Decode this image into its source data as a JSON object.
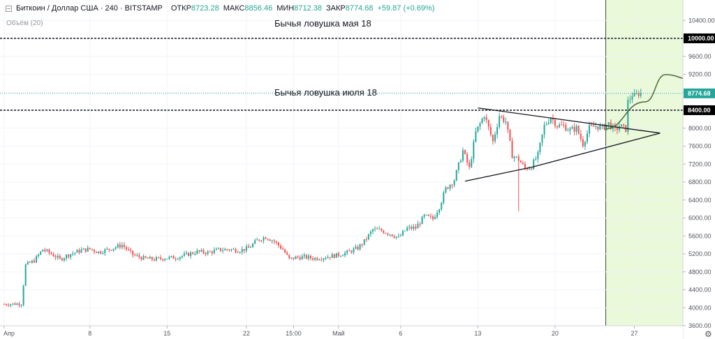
{
  "header": {
    "symbol": "Биткоин / Доллар США · 240 · BITSTAMP",
    "open_label": "ОТКР",
    "open_value": "8723.28",
    "high_label": "МАКС",
    "high_value": "8856.46",
    "low_label": "МИН",
    "low_value": "8712.38",
    "close_label": "ЗАКР",
    "close_value": "8774.68",
    "change": "+59.87 (+0.69%)"
  },
  "volume_label": "Объём (20)",
  "chart_data": {
    "type": "candlestick",
    "y_axis": {
      "min": 3500,
      "max": 10700,
      "ticks": [
        3600,
        4000,
        4400,
        4800,
        5200,
        5600,
        6000,
        6400,
        6800,
        7200,
        7600,
        8000,
        8400,
        8800,
        9200,
        9600,
        10000,
        10400
      ],
      "tick_labels": [
        "3600.00",
        "4000.00",
        "4400.00",
        "4800.00",
        "5200.00",
        "5600.00",
        "6000.00",
        "6400.00",
        "6800.00",
        "7200.00",
        "7600.00",
        "8000.00",
        "8400.00",
        "8800.00",
        "9200.00",
        "9600.00",
        "10000.00",
        "10400.00"
      ],
      "highlighted_labels": [
        {
          "value": 10000,
          "label": "10000.00",
          "color": "#000000"
        },
        {
          "value": 8400,
          "label": "8400.00",
          "color": "#000000"
        },
        {
          "value": 8774.68,
          "label": "8774.68",
          "color": "#26a69a"
        }
      ]
    },
    "x_axis": {
      "ticks": [
        {
          "label": "Апр",
          "bar": 0
        },
        {
          "label": "8",
          "bar": 40
        },
        {
          "label": "15",
          "bar": 76
        },
        {
          "label": "22",
          "bar": 113
        },
        {
          "label": "15:00",
          "bar": 135
        },
        {
          "label": "Май",
          "bar": 156
        },
        {
          "label": "6",
          "bar": 185
        },
        {
          "label": "13",
          "bar": 221
        },
        {
          "label": "20",
          "bar": 257
        },
        {
          "label": "27",
          "bar": 294
        }
      ]
    },
    "bar_count": 298,
    "anchors": [
      [
        0,
        4080
      ],
      [
        8,
        4090
      ],
      [
        10,
        4950
      ],
      [
        14,
        5050
      ],
      [
        18,
        5300
      ],
      [
        22,
        5200
      ],
      [
        26,
        5080
      ],
      [
        30,
        5180
      ],
      [
        36,
        5280
      ],
      [
        40,
        5310
      ],
      [
        44,
        5240
      ],
      [
        50,
        5320
      ],
      [
        55,
        5400
      ],
      [
        60,
        5180
      ],
      [
        65,
        5100
      ],
      [
        70,
        5080
      ],
      [
        76,
        5110
      ],
      [
        80,
        5120
      ],
      [
        85,
        5180
      ],
      [
        90,
        5250
      ],
      [
        95,
        5230
      ],
      [
        100,
        5290
      ],
      [
        105,
        5300
      ],
      [
        110,
        5280
      ],
      [
        114,
        5330
      ],
      [
        118,
        5500
      ],
      [
        122,
        5580
      ],
      [
        126,
        5480
      ],
      [
        130,
        5300
      ],
      [
        133,
        5080
      ],
      [
        136,
        5120
      ],
      [
        140,
        5130
      ],
      [
        145,
        5100
      ],
      [
        150,
        5130
      ],
      [
        155,
        5170
      ],
      [
        160,
        5230
      ],
      [
        165,
        5330
      ],
      [
        168,
        5480
      ],
      [
        172,
        5740
      ],
      [
        176,
        5720
      ],
      [
        180,
        5650
      ],
      [
        184,
        5560
      ],
      [
        188,
        5770
      ],
      [
        192,
        5780
      ],
      [
        196,
        6040
      ],
      [
        200,
        5980
      ],
      [
        203,
        6250
      ],
      [
        206,
        6650
      ],
      [
        210,
        6850
      ],
      [
        214,
        7500
      ],
      [
        217,
        7100
      ],
      [
        220,
        7900
      ],
      [
        224,
        8300
      ],
      [
        228,
        7700
      ],
      [
        231,
        8280
      ],
      [
        234,
        8150
      ],
      [
        237,
        7400
      ],
      [
        240,
        7300
      ],
      [
        243,
        7100
      ],
      [
        246,
        7150
      ],
      [
        249,
        7400
      ],
      [
        252,
        8050
      ],
      [
        255,
        8250
      ],
      [
        258,
        8060
      ],
      [
        261,
        8050
      ],
      [
        264,
        7950
      ],
      [
        267,
        8000
      ],
      [
        270,
        7650
      ],
      [
        273,
        8000
      ],
      [
        276,
        8050
      ],
      [
        279,
        8010
      ],
      [
        282,
        8100
      ],
      [
        285,
        7950
      ],
      [
        287,
        8050
      ],
      [
        290,
        7980
      ],
      [
        291,
        8580
      ],
      [
        293,
        8750
      ],
      [
        294,
        8700
      ],
      [
        296,
        8780
      ],
      [
        297,
        8775
      ]
    ],
    "spikes": [
      {
        "bar": 240,
        "low": 6150
      }
    ],
    "projection_start_bar": 280,
    "projection_curve": [
      [
        0,
        0
      ],
      [
        0.08,
        0.3
      ],
      [
        0.12,
        0.6
      ],
      [
        0.17,
        0.55
      ],
      [
        0.24,
        0.75
      ],
      [
        0.3,
        0.95
      ],
      [
        0.34,
        1.0
      ],
      [
        0.4,
        0.9
      ],
      [
        0.5,
        0.55
      ],
      [
        0.6,
        0.1
      ],
      [
        0.7,
        -0.35
      ],
      [
        0.78,
        -0.6
      ]
    ],
    "annotations": [
      {
        "text": "Бычья ловушка мая 18",
        "level": 10000
      },
      {
        "text": "Бычья ловушка июля 18",
        "level": 8400
      }
    ],
    "horizontal_levels": [
      10000,
      8400
    ],
    "current_price": 8774.68,
    "triangle": [
      [
        215,
        6820
      ],
      [
        246,
        7130
      ],
      [
        306,
        7890
      ],
      [
        221,
        8450
      ]
    ],
    "colors": {
      "up": "#26a69a",
      "down": "#ef5350",
      "highlight": "#e9f9d9",
      "projection": "#4b6a3c",
      "axis_text": "#50535e"
    }
  }
}
